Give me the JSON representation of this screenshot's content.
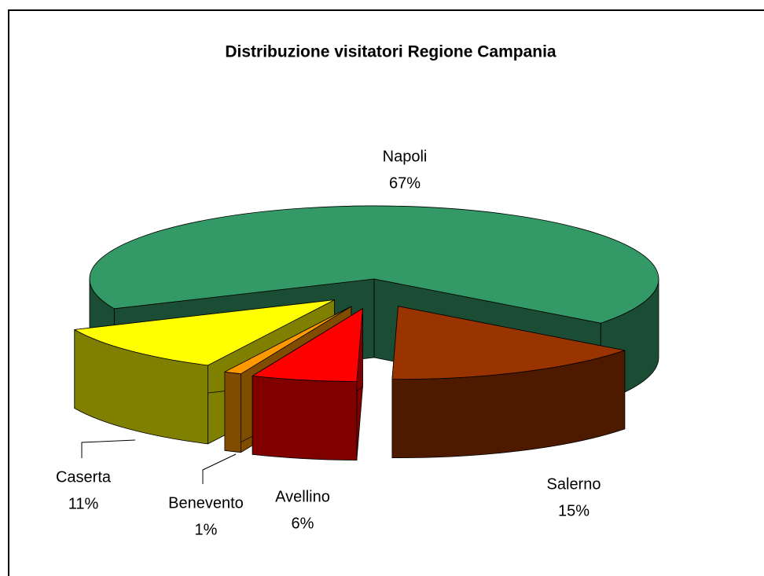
{
  "chart_data": {
    "type": "pie3d",
    "title": "Distribuzione visitatori Regione Campania",
    "categories": [
      "Napoli",
      "Salerno",
      "Avellino",
      "Benevento",
      "Caserta"
    ],
    "values": [
      67,
      15,
      6,
      1,
      11
    ],
    "value_labels": [
      "67%",
      "15%",
      "6%",
      "1%",
      "11%"
    ],
    "colors": [
      "#339966",
      "#993300",
      "#ff0000",
      "#ff9900",
      "#ffff00"
    ],
    "exploded": [
      false,
      true,
      true,
      true,
      true
    ]
  }
}
